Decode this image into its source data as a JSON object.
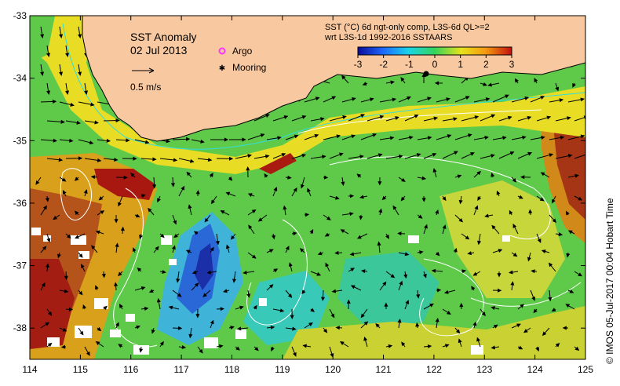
{
  "title": {
    "line1": "SST Anomaly",
    "line2": "02 Jul 2013"
  },
  "scale_arrow": {
    "label": "0.5 m/s"
  },
  "legend": {
    "argo": {
      "label": "Argo",
      "color": "#ff33ff"
    },
    "mooring": {
      "label": "Mooring",
      "color": "#000000"
    }
  },
  "product": {
    "line1": "SST (°C) 6d ngt-only comp, L3S-6d QL>=2",
    "line2": "wrt L3S-1d 1992-2016 SSTAARS"
  },
  "colorbar": {
    "ticks": [
      "-3",
      "-2",
      "-1",
      "0",
      "1",
      "2",
      "3"
    ],
    "range": [
      -3,
      3
    ],
    "colors": [
      "#0a0a9c",
      "#1e6cff",
      "#19d4e8",
      "#35d35a",
      "#e6e21c",
      "#f59a10",
      "#c21010"
    ]
  },
  "axes": {
    "x_ticks": [
      "114",
      "115",
      "116",
      "117",
      "118",
      "119",
      "120",
      "121",
      "122",
      "123",
      "124",
      "125"
    ],
    "y_ticks": [
      "-33",
      "-34",
      "-35",
      "-36",
      "-37",
      "-38"
    ],
    "x_range": [
      114,
      125
    ],
    "y_range": [
      -38.5,
      -33
    ]
  },
  "credit": "© IMOS 05-Jul-2017 00:04 Hobart Time",
  "colors": {
    "land": "#f8c9a0",
    "coast": "#000000",
    "current_contour": "#ffffff",
    "shelf_contour": "#33dddd"
  }
}
